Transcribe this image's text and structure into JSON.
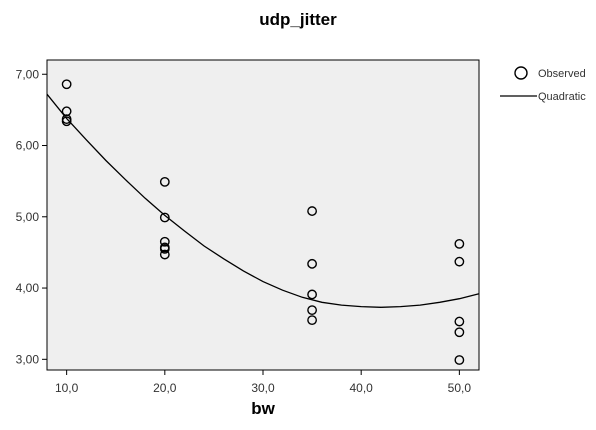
{
  "chart_data": {
    "type": "scatter",
    "title": "udp_jitter",
    "xlabel": "bw",
    "ylabel": "",
    "xlim": [
      8,
      52
    ],
    "ylim": [
      2.85,
      7.2
    ],
    "xticks": [
      10,
      20,
      30,
      40,
      50
    ],
    "yticks": [
      3,
      4,
      5,
      6,
      7
    ],
    "xtick_labels": [
      "10,0",
      "20,0",
      "30,0",
      "40,0",
      "50,0"
    ],
    "ytick_labels": [
      "3,00",
      "4,00",
      "5,00",
      "6,00",
      "7,00"
    ],
    "grid": false,
    "legend_position": "right",
    "colors": {
      "plot_bg": "#efefef",
      "marker": "#000000",
      "line": "#000000"
    },
    "series": [
      {
        "name": "Observed",
        "type": "scatter",
        "x": [
          10,
          10,
          10,
          10,
          20,
          20,
          20,
          20,
          20,
          20,
          35,
          35,
          35,
          35,
          35,
          50,
          50,
          50,
          50,
          50
        ],
        "y": [
          6.86,
          6.48,
          6.37,
          6.34,
          5.49,
          4.99,
          4.65,
          4.57,
          4.47,
          4.55,
          5.08,
          4.34,
          3.91,
          3.69,
          3.55,
          4.62,
          4.37,
          3.53,
          3.38,
          2.99
        ]
      },
      {
        "name": "Quadratic",
        "type": "line",
        "x": [
          8,
          10,
          12,
          14,
          16,
          18,
          20,
          22,
          24,
          26,
          28,
          30,
          32,
          34,
          36,
          38,
          40,
          42,
          44,
          46,
          48,
          50,
          52
        ],
        "y": [
          6.72,
          6.38,
          6.08,
          5.79,
          5.52,
          5.26,
          5.02,
          4.8,
          4.59,
          4.41,
          4.24,
          4.09,
          3.97,
          3.87,
          3.8,
          3.76,
          3.74,
          3.73,
          3.74,
          3.76,
          3.8,
          3.85,
          3.92
        ]
      }
    ]
  }
}
